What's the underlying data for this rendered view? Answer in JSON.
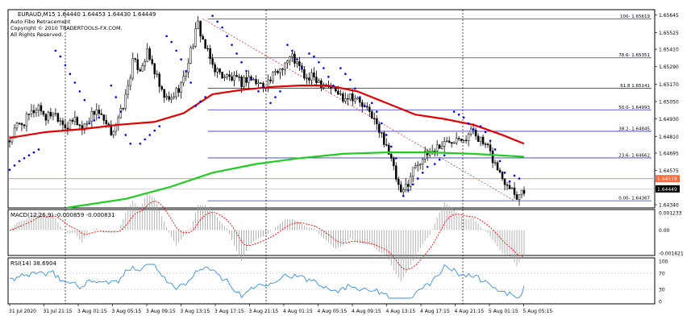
{
  "header": {
    "symbol_line": "EURAUD,M15  1.64440 1.64453 1.64430 1.64449",
    "info_lines": [
      "Auto Fibo Retracement",
      "Copyright © 2010 TRADERTOOLS-FX.COM.",
      "All Rights Reserved."
    ]
  },
  "colors": {
    "candle": "#000000",
    "sar": "#0000ff",
    "ma_red": "#e00000",
    "ma_green": "#22cc22",
    "fibo": "#3333cc",
    "trend_dashed": "#d04040",
    "current_price_line": "#ff6a3d",
    "grid": "#000000",
    "macd_signal": "#ff0000",
    "macd_hist": "#a0a0a0",
    "rsi": "#3a8fdc"
  },
  "chart_data": [
    {
      "type": "candlestick",
      "name": "EURAUD,M15",
      "y_axis_ticks": [
        "1.65645",
        "1.65525",
        "1.65410",
        "1.65290",
        "1.65170",
        "1.65050",
        "1.64930",
        "1.64810",
        "1.64695",
        "1.64575",
        "1.64455",
        "1.64340"
      ],
      "ylim": [
        1.6434,
        1.6566
      ],
      "current_price": "1.64449",
      "ask_price": "1.64519",
      "fibo_levels": [
        {
          "label": "100- 1.65619",
          "value": 1.65619
        },
        {
          "label": "78.6- 1.65351",
          "value": 1.65351
        },
        {
          "label": "61.8 1.65141",
          "value": 1.65141
        },
        {
          "label": "50.0- 1.64993",
          "value": 1.64993
        },
        {
          "label": "38.2- 1.64845",
          "value": 1.64845
        },
        {
          "label": "23.6- 1.64662",
          "value": 1.64662
        },
        {
          "label": "0.00- 1.64367",
          "value": 1.64367
        }
      ],
      "x_tick_labels": [
        "31 Jul 2020",
        "31 Jul 21:15",
        "3 Aug 01:15",
        "3 Aug 05:15",
        "3 Aug 09:15",
        "3 Aug 13:15",
        "3 Aug 17:15",
        "3 Aug 21:15",
        "4 Aug 01:15",
        "4 Aug 05:15",
        "4 Aug 09:15",
        "4 Aug 13:15",
        "4 Aug 17:15",
        "4 Aug 21:15",
        "5 Aug 01:15",
        "5 Aug 05:15"
      ],
      "close_path": [
        [
          0,
          1.6478
        ],
        [
          3,
          1.6488
        ],
        [
          6,
          1.6491
        ],
        [
          9,
          1.6497
        ],
        [
          12,
          1.6502
        ],
        [
          15,
          1.6494
        ],
        [
          18,
          1.6498
        ],
        [
          21,
          1.6493
        ],
        [
          24,
          1.6487
        ],
        [
          27,
          1.6493
        ],
        [
          30,
          1.6486
        ],
        [
          33,
          1.6494
        ],
        [
          36,
          1.65
        ],
        [
          39,
          1.649
        ],
        [
          42,
          1.6484
        ],
        [
          45,
          1.6492
        ],
        [
          48,
          1.6508
        ],
        [
          51,
          1.6532
        ],
        [
          54,
          1.6528
        ],
        [
          57,
          1.6538
        ],
        [
          60,
          1.6526
        ],
        [
          63,
          1.651
        ],
        [
          66,
          1.6505
        ],
        [
          69,
          1.6512
        ],
        [
          72,
          1.652
        ],
        [
          75,
          1.654
        ],
        [
          78,
          1.6558
        ],
        [
          81,
          1.6542
        ],
        [
          84,
          1.653
        ],
        [
          87,
          1.6524
        ],
        [
          90,
          1.6522
        ],
        [
          93,
          1.652
        ],
        [
          96,
          1.6518
        ],
        [
          99,
          1.6522
        ],
        [
          102,
          1.6518
        ],
        [
          105,
          1.6516
        ],
        [
          108,
          1.652
        ],
        [
          111,
          1.6526
        ],
        [
          114,
          1.6532
        ],
        [
          117,
          1.6536
        ],
        [
          120,
          1.6528
        ],
        [
          123,
          1.652
        ],
        [
          126,
          1.6522
        ],
        [
          129,
          1.6518
        ],
        [
          132,
          1.6516
        ],
        [
          135,
          1.6512
        ],
        [
          138,
          1.6508
        ],
        [
          141,
          1.651
        ],
        [
          144,
          1.6506
        ],
        [
          147,
          1.65
        ],
        [
          150,
          1.6496
        ],
        [
          153,
          1.6484
        ],
        [
          156,
          1.6476
        ],
        [
          159,
          1.6458
        ],
        [
          162,
          1.644
        ],
        [
          165,
          1.645
        ],
        [
          168,
          1.6462
        ],
        [
          171,
          1.6466
        ],
        [
          174,
          1.647
        ],
        [
          177,
          1.6474
        ],
        [
          180,
          1.6476
        ],
        [
          183,
          1.6479
        ],
        [
          186,
          1.6482
        ],
        [
          189,
          1.648
        ],
        [
          192,
          1.6486
        ],
        [
          195,
          1.6478
        ],
        [
          198,
          1.6472
        ],
        [
          201,
          1.6462
        ],
        [
          204,
          1.6452
        ],
        [
          207,
          1.6448
        ],
        [
          210,
          1.644
        ],
        [
          213,
          1.6445
        ]
      ],
      "ma_red": [
        [
          0,
          1.648
        ],
        [
          15,
          1.6484
        ],
        [
          30,
          1.6486
        ],
        [
          45,
          1.6489
        ],
        [
          60,
          1.6491
        ],
        [
          72,
          1.6497
        ],
        [
          84,
          1.651
        ],
        [
          96,
          1.6513
        ],
        [
          108,
          1.6515
        ],
        [
          120,
          1.6516
        ],
        [
          132,
          1.6516
        ],
        [
          144,
          1.6512
        ],
        [
          156,
          1.6504
        ],
        [
          168,
          1.6496
        ],
        [
          180,
          1.6493
        ],
        [
          192,
          1.6489
        ],
        [
          204,
          1.6482
        ],
        [
          213,
          1.6476
        ]
      ],
      "ma_green": [
        [
          24,
          1.6432
        ],
        [
          48,
          1.6438
        ],
        [
          66,
          1.6446
        ],
        [
          84,
          1.6456
        ],
        [
          102,
          1.6462
        ],
        [
          120,
          1.6466
        ],
        [
          138,
          1.6469
        ],
        [
          156,
          1.647
        ],
        [
          174,
          1.647
        ],
        [
          192,
          1.6469
        ],
        [
          213,
          1.6467
        ]
      ],
      "sar_dots": [
        [
          0,
          1.6458
        ],
        [
          2,
          1.6461
        ],
        [
          4,
          1.6464
        ],
        [
          6,
          1.6466
        ],
        [
          8,
          1.6468
        ],
        [
          10,
          1.647
        ],
        [
          12,
          1.6472
        ],
        [
          19,
          1.654
        ],
        [
          21,
          1.6536
        ],
        [
          23,
          1.653
        ],
        [
          25,
          1.6524
        ],
        [
          27,
          1.6518
        ],
        [
          29,
          1.6512
        ],
        [
          31,
          1.6506
        ],
        [
          33,
          1.649
        ],
        [
          35,
          1.6492
        ],
        [
          37,
          1.6494
        ],
        [
          42,
          1.6516
        ],
        [
          44,
          1.6508
        ],
        [
          46,
          1.6498
        ],
        [
          48,
          1.6482
        ],
        [
          50,
          1.6476
        ],
        [
          54,
          1.6476
        ],
        [
          56,
          1.6479
        ],
        [
          58,
          1.6482
        ],
        [
          60,
          1.6485
        ],
        [
          62,
          1.6488
        ],
        [
          65,
          1.655
        ],
        [
          67,
          1.6546
        ],
        [
          69,
          1.654
        ],
        [
          71,
          1.6534
        ],
        [
          73,
          1.6526
        ],
        [
          75,
          1.6518
        ],
        [
          77,
          1.6502
        ],
        [
          79,
          1.6505
        ],
        [
          81,
          1.6508
        ],
        [
          84,
          1.6564
        ],
        [
          86,
          1.656
        ],
        [
          88,
          1.6556
        ],
        [
          90,
          1.655
        ],
        [
          92,
          1.6544
        ],
        [
          94,
          1.6538
        ],
        [
          96,
          1.6532
        ],
        [
          98,
          1.6526
        ],
        [
          100,
          1.652
        ],
        [
          103,
          1.6512
        ],
        [
          105,
          1.6515
        ],
        [
          108,
          1.6504
        ],
        [
          110,
          1.6508
        ],
        [
          112,
          1.6512
        ],
        [
          115,
          1.6544
        ],
        [
          117,
          1.654
        ],
        [
          119,
          1.6534
        ],
        [
          121,
          1.6528
        ],
        [
          124,
          1.6538
        ],
        [
          126,
          1.6536
        ],
        [
          128,
          1.6532
        ],
        [
          130,
          1.6528
        ],
        [
          132,
          1.6522
        ],
        [
          134,
          1.6516
        ],
        [
          137,
          1.6528
        ],
        [
          139,
          1.6524
        ],
        [
          141,
          1.652
        ],
        [
          143,
          1.6514
        ],
        [
          145,
          1.6508
        ],
        [
          147,
          1.6502
        ],
        [
          150,
          1.6504
        ],
        [
          152,
          1.6498
        ],
        [
          154,
          1.649
        ],
        [
          156,
          1.6482
        ],
        [
          158,
          1.6474
        ],
        [
          160,
          1.6466
        ],
        [
          163,
          1.644
        ],
        [
          165,
          1.6444
        ],
        [
          167,
          1.6448
        ],
        [
          169,
          1.6452
        ],
        [
          171,
          1.6456
        ],
        [
          173,
          1.646
        ],
        [
          176,
          1.6462
        ],
        [
          178,
          1.6465
        ],
        [
          180,
          1.6468
        ],
        [
          184,
          1.6498
        ],
        [
          186,
          1.6496
        ],
        [
          188,
          1.6494
        ],
        [
          190,
          1.649
        ],
        [
          192,
          1.6486
        ],
        [
          195,
          1.6488
        ],
        [
          197,
          1.6484
        ],
        [
          199,
          1.6478
        ],
        [
          201,
          1.6472
        ],
        [
          203,
          1.6464
        ],
        [
          205,
          1.6456
        ],
        [
          207,
          1.645
        ],
        [
          209,
          1.6454
        ],
        [
          211,
          1.6452
        ]
      ]
    },
    {
      "type": "histogram",
      "name": "MACD(12,26,9)",
      "label": "MACD(12,26,9) -0.000859 -0.000831",
      "y_axis_ticks": [
        "0.001233",
        "0.00",
        "-0.001621"
      ],
      "ylim": [
        -0.001621,
        0.001233
      ]
    },
    {
      "type": "line",
      "name": "RSI(14)",
      "label": "RSI(14) 38.6904",
      "y_axis_ticks": [
        "100",
        "70",
        "30",
        "0"
      ],
      "ylim": [
        0,
        100
      ],
      "levels": [
        70,
        30
      ],
      "last_value": 38.6904
    }
  ]
}
